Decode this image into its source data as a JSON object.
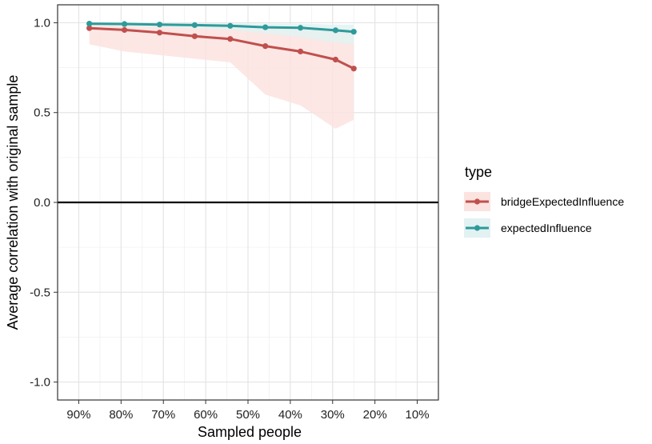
{
  "chart_data": {
    "type": "line",
    "xlabel": "Sampled people",
    "ylabel": "Average correlation with original sample",
    "x_ticks": [
      "90%",
      "80%",
      "70%",
      "60%",
      "50%",
      "40%",
      "30%",
      "20%",
      "10%"
    ],
    "x_tick_values": [
      90,
      80,
      70,
      60,
      50,
      40,
      30,
      20,
      10
    ],
    "xlim": [
      95,
      5
    ],
    "x_reversed": true,
    "y_ticks": [
      "-1.0",
      "-0.5",
      "0.0",
      "0.5",
      "1.0"
    ],
    "y_tick_values": [
      -1.0,
      -0.5,
      0.0,
      0.5,
      1.0
    ],
    "ylim": [
      -1.1,
      1.1
    ],
    "grid": true,
    "reference_line_y": 0.0,
    "legend_title": "type",
    "legend_position": "right",
    "x": [
      87.5,
      79.2,
      70.9,
      62.6,
      54.2,
      45.9,
      37.6,
      29.3,
      25.0
    ],
    "series": [
      {
        "name": "bridgeExpectedInfluence",
        "color": "#c0504d",
        "band_color": "#fbe3e0",
        "values": [
          0.97,
          0.96,
          0.945,
          0.925,
          0.91,
          0.87,
          0.84,
          0.795,
          0.745
        ],
        "lower": [
          0.88,
          0.84,
          0.82,
          0.8,
          0.78,
          0.6,
          0.54,
          0.41,
          0.46
        ],
        "upper": [
          0.99,
          0.99,
          0.99,
          0.985,
          0.98,
          0.975,
          0.97,
          0.965,
          0.96
        ]
      },
      {
        "name": "expectedInfluence",
        "color": "#2f9a9a",
        "band_color": "#e2f2f2",
        "values": [
          0.995,
          0.993,
          0.99,
          0.987,
          0.983,
          0.975,
          0.972,
          0.958,
          0.95
        ],
        "lower": [
          0.985,
          0.98,
          0.975,
          0.97,
          0.96,
          0.94,
          0.92,
          0.89,
          0.88
        ],
        "upper": [
          1.0,
          1.0,
          0.999,
          0.998,
          0.997,
          0.996,
          0.995,
          0.99,
          0.99
        ]
      }
    ]
  }
}
